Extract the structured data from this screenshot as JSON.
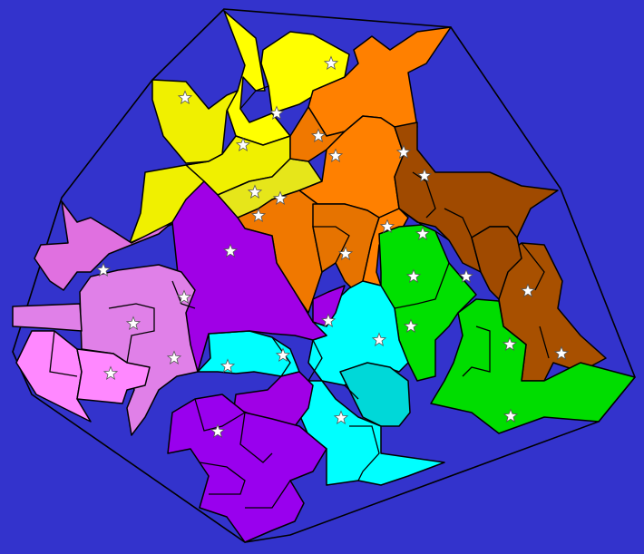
{
  "background": "#3333cc",
  "border_color": "#000000",
  "star_color": "#ffffff",
  "regions": [
    {
      "id": "yellow-top",
      "color": "#ffff00"
    },
    {
      "id": "yellow-left",
      "color": "#f0f000"
    },
    {
      "id": "yellow-mid",
      "color": "#e6e61a"
    },
    {
      "id": "orange-top",
      "color": "#ff8000"
    },
    {
      "id": "orange-mid",
      "color": "#f07800"
    },
    {
      "id": "orange-low",
      "color": "#e67300"
    },
    {
      "id": "brown-main",
      "color": "#a04a00"
    },
    {
      "id": "brown-right",
      "color": "#a85000"
    },
    {
      "id": "green-mid",
      "color": "#00e000"
    },
    {
      "id": "green-right",
      "color": "#00dd00"
    },
    {
      "id": "cyan-main",
      "color": "#00ffff"
    },
    {
      "id": "cyan-dark",
      "color": "#00d8d8"
    },
    {
      "id": "purple-big",
      "color": "#a000e6"
    },
    {
      "id": "purple-bottom",
      "color": "#9900ee"
    },
    {
      "id": "pink-top",
      "color": "#e070e0"
    },
    {
      "id": "pink-mid",
      "color": "#e080e8"
    },
    {
      "id": "pink-left",
      "color": "#ff88ff"
    }
  ],
  "star_count": 33
}
